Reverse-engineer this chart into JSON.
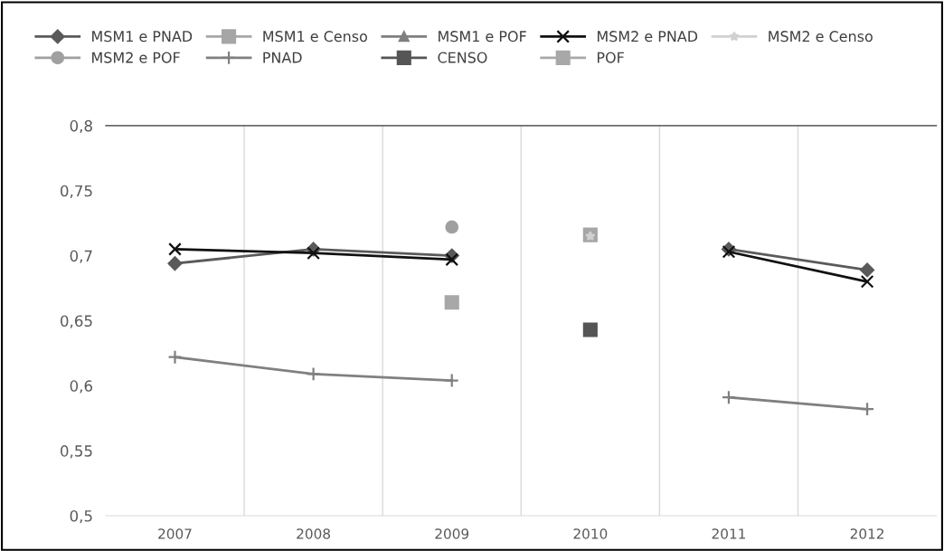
{
  "chart_data": {
    "type": "line",
    "categories": [
      "2007",
      "2008",
      "2009",
      "2010",
      "2011",
      "2012"
    ],
    "series": [
      {
        "name": "MSM1 e PNAD",
        "color": "#5a5a5a",
        "marker": "diamond",
        "values": [
          0.694,
          0.705,
          0.7,
          null,
          0.705,
          0.689
        ]
      },
      {
        "name": "MSM1 e Censo",
        "color": "#a6a6a6",
        "marker": "square",
        "values": [
          null,
          null,
          null,
          0.716,
          null,
          null
        ]
      },
      {
        "name": "MSM1 e POF",
        "color": "#7f7f7f",
        "marker": "triangle",
        "values": [
          null,
          null,
          null,
          null,
          null,
          null
        ]
      },
      {
        "name": "MSM2 e PNAD",
        "color": "#111111",
        "marker": "x",
        "values": [
          0.705,
          0.702,
          0.697,
          null,
          0.703,
          0.68
        ]
      },
      {
        "name": "MSM2 e Censo",
        "color": "#d0d0d0",
        "marker": "star",
        "values": [
          null,
          null,
          null,
          0.715,
          null,
          null
        ]
      },
      {
        "name": "MSM2 e POF",
        "color": "#a0a0a0",
        "marker": "circle",
        "values": [
          null,
          null,
          0.722,
          null,
          null,
          null
        ]
      },
      {
        "name": "PNAD",
        "color": "#808080",
        "marker": "plus",
        "values": [
          0.622,
          0.609,
          0.604,
          null,
          0.591,
          0.582
        ]
      },
      {
        "name": "CENSO",
        "color": "#555555",
        "marker": "square",
        "values": [
          null,
          null,
          null,
          0.643,
          null,
          null
        ]
      },
      {
        "name": "POF",
        "color": "#a8a8a8",
        "marker": "square",
        "values": [
          null,
          null,
          0.664,
          null,
          null,
          null
        ]
      }
    ],
    "ylim": [
      0.5,
      0.8
    ],
    "yticks": [
      {
        "value": 0.5,
        "label": "0,5"
      },
      {
        "value": 0.55,
        "label": "0,55"
      },
      {
        "value": 0.6,
        "label": "0,6"
      },
      {
        "value": 0.65,
        "label": "0,65"
      },
      {
        "value": 0.7,
        "label": "0,7"
      },
      {
        "value": 0.75,
        "label": "0,75"
      },
      {
        "value": 0.8,
        "label": "0,8"
      }
    ],
    "grid": "x",
    "legend": "top"
  }
}
